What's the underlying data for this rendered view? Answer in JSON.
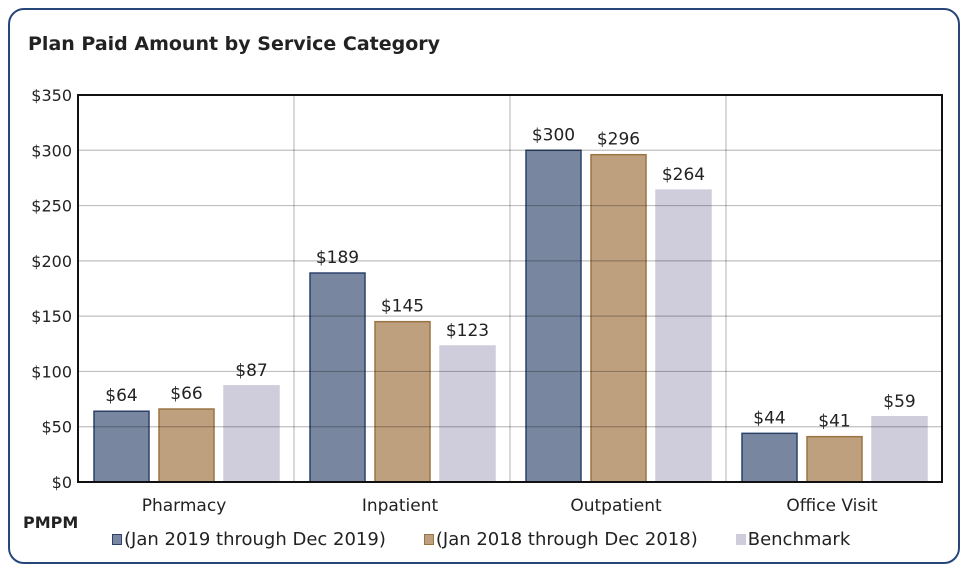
{
  "title": "Plan Paid Amount by Service Category",
  "unit_label": "PMPM",
  "chart_data": {
    "type": "bar",
    "title": "Plan Paid Amount by Service Category",
    "ylabel": "",
    "xlabel": "",
    "ylim": [
      0,
      350
    ],
    "yticks": [
      0,
      50,
      100,
      150,
      200,
      250,
      300,
      350
    ],
    "ytick_labels": [
      "$0",
      "$50",
      "$100",
      "$150",
      "$200",
      "$250",
      "$300",
      "$350"
    ],
    "grid": true,
    "legend_position": "bottom",
    "categories": [
      "Pharmacy",
      "Inpatient",
      "Outpatient",
      "Office Visit"
    ],
    "series": [
      {
        "name": "(Jan 2019 through Dec 2019)",
        "values": [
          64,
          189,
          300,
          44
        ],
        "labels": [
          "$64",
          "$189",
          "$300",
          "$44"
        ],
        "color": "#78879f",
        "border": "#2c426a"
      },
      {
        "name": "(Jan 2018 through Dec 2018)",
        "values": [
          66,
          145,
          296,
          41
        ],
        "labels": [
          "$66",
          "$145",
          "$296",
          "$41"
        ],
        "color": "#bea07f",
        "border": "#9a7444"
      },
      {
        "name": "Benchmark",
        "values": [
          87,
          123,
          264,
          59
        ],
        "labels": [
          "$87",
          "$123",
          "$264",
          "$59"
        ],
        "color": "#cfcddc",
        "border": "#cfcddc"
      }
    ]
  }
}
